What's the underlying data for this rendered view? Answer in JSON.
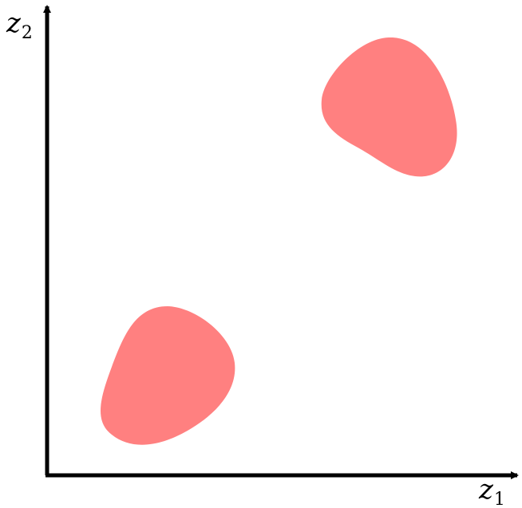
{
  "diagram": {
    "axes": {
      "x_label": {
        "base": "z",
        "subscript": "1"
      },
      "y_label": {
        "base": "z",
        "subscript": "2"
      },
      "color": "#000000"
    },
    "regions": [
      {
        "name": "lower-left-region",
        "color": "#ff8080"
      },
      {
        "name": "upper-right-region",
        "color": "#ff8080"
      }
    ]
  }
}
